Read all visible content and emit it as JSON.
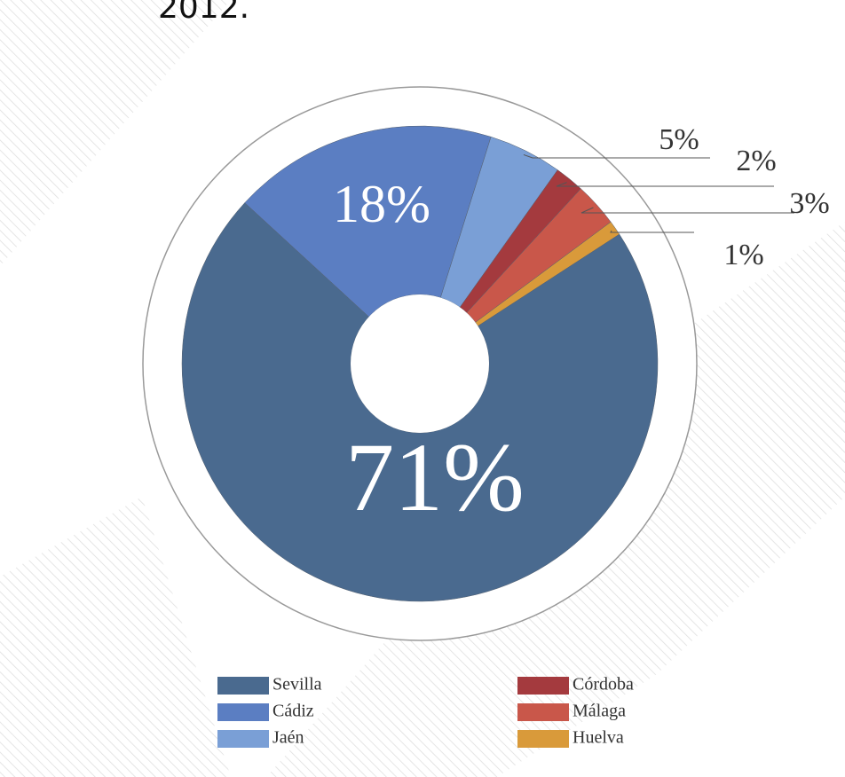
{
  "chart_data": {
    "type": "donut",
    "title": "2012.",
    "categories": [
      "Sevilla",
      "Cádiz",
      "Jaén",
      "Córdoba",
      "Málaga",
      "Huelva"
    ],
    "values": [
      71,
      18,
      5,
      2,
      3,
      1
    ],
    "value_labels": [
      "71%",
      "18%",
      "5%",
      "2%",
      "3%",
      "1%"
    ],
    "colors": [
      "#4a6a8f",
      "#5b7ec2",
      "#7a9fd6",
      "#a43a3e",
      "#c9574a",
      "#d99a3a"
    ]
  }
}
